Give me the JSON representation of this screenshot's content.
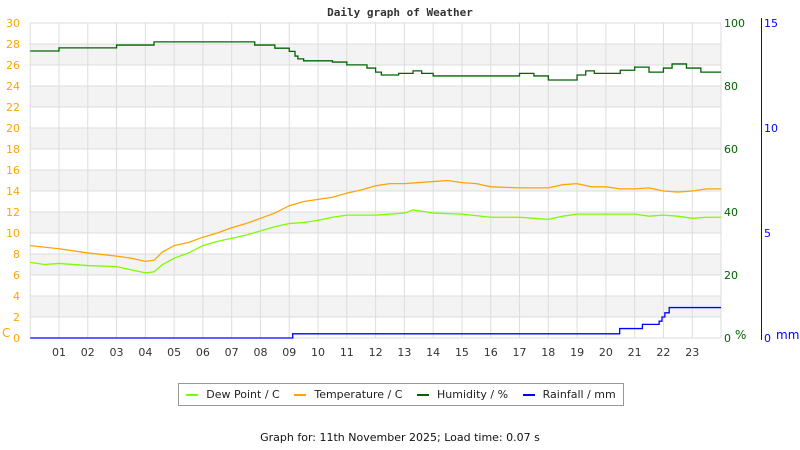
{
  "chart_data": {
    "type": "line",
    "title": "Daily graph of Weather",
    "x_tick_labels": [
      "01",
      "02",
      "03",
      "04",
      "05",
      "06",
      "07",
      "08",
      "09",
      "10",
      "11",
      "12",
      "13",
      "14",
      "15",
      "16",
      "17",
      "18",
      "19",
      "20",
      "21",
      "22",
      "23"
    ],
    "xlim": [
      0,
      24
    ],
    "left_axis": {
      "unit": "C",
      "ylim": [
        0,
        30
      ],
      "ticks": [
        0,
        2,
        4,
        6,
        8,
        10,
        12,
        14,
        16,
        18,
        20,
        22,
        24,
        26,
        28,
        30
      ],
      "color": "#ffa500"
    },
    "right_axis_humidity": {
      "unit": "%",
      "ylim": [
        0,
        100
      ],
      "ticks": [
        0,
        20,
        40,
        60,
        80,
        100
      ],
      "color": "#006400"
    },
    "right_axis_rain": {
      "unit": "mm",
      "ylim": [
        0,
        15
      ],
      "ticks": [
        0,
        5,
        10,
        15
      ],
      "color": "#0000ff"
    },
    "grid": true,
    "legend_placement": "bottom",
    "series": [
      {
        "name": "Dew Point / C",
        "color": "#7cfc00",
        "axis": "left",
        "style": "line",
        "x": [
          0,
          0.5,
          1,
          2,
          3,
          3.5,
          4,
          4.3,
          4.6,
          5,
          5.5,
          6,
          6.5,
          7,
          7.5,
          8,
          8.5,
          9,
          9.5,
          10,
          10.5,
          11,
          12,
          12.5,
          13,
          13.3,
          14,
          15,
          16,
          17,
          17.5,
          18,
          18.5,
          19,
          20,
          21,
          21.5,
          22,
          22.5,
          23,
          23.5,
          24
        ],
        "y": [
          7.2,
          7.0,
          7.1,
          6.9,
          6.8,
          6.5,
          6.2,
          6.3,
          7.0,
          7.6,
          8.1,
          8.8,
          9.2,
          9.5,
          9.8,
          10.2,
          10.6,
          10.9,
          11.0,
          11.2,
          11.5,
          11.7,
          11.7,
          11.8,
          11.9,
          12.2,
          11.9,
          11.8,
          11.5,
          11.5,
          11.4,
          11.3,
          11.6,
          11.8,
          11.8,
          11.8,
          11.6,
          11.7,
          11.6,
          11.4,
          11.5,
          11.5
        ]
      },
      {
        "name": "Temperature / C",
        "color": "#ffa500",
        "axis": "left",
        "style": "line",
        "x": [
          0,
          1,
          2,
          3,
          3.5,
          4,
          4.3,
          4.6,
          5,
          5.5,
          6,
          6.5,
          7,
          7.5,
          8,
          8.5,
          9,
          9.5,
          10,
          10.5,
          11,
          11.5,
          12,
          12.5,
          13,
          14,
          14.5,
          15,
          15.5,
          16,
          17,
          18,
          18.5,
          19,
          19.5,
          20,
          20.5,
          21,
          21.5,
          22,
          22.5,
          23,
          23.5,
          24
        ],
        "y": [
          8.8,
          8.5,
          8.1,
          7.8,
          7.6,
          7.3,
          7.4,
          8.2,
          8.8,
          9.1,
          9.6,
          10.0,
          10.5,
          10.9,
          11.4,
          11.9,
          12.6,
          13.0,
          13.2,
          13.4,
          13.8,
          14.1,
          14.5,
          14.7,
          14.7,
          14.9,
          15.0,
          14.8,
          14.7,
          14.4,
          14.3,
          14.3,
          14.6,
          14.7,
          14.4,
          14.4,
          14.2,
          14.2,
          14.3,
          14.0,
          13.9,
          14.0,
          14.2,
          14.2
        ]
      },
      {
        "name": "Humidity / %",
        "color": "#006400",
        "axis": "right_humidity",
        "style": "step",
        "x": [
          0,
          1,
          3,
          4.3,
          7.8,
          8.5,
          9,
          9.2,
          9.3,
          9.5,
          10.5,
          11,
          11.7,
          12,
          12.2,
          12.8,
          13.3,
          13.6,
          14,
          17,
          17.5,
          18,
          19,
          19.3,
          19.6,
          20.5,
          21,
          21.5,
          22,
          22.3,
          22.8,
          23.3,
          24
        ],
        "y": [
          91.1,
          92.1,
          93.0,
          94.0,
          93.0,
          92.0,
          91.0,
          89.5,
          88.6,
          88.0,
          87.6,
          86.7,
          85.7,
          84.4,
          83.5,
          84.0,
          84.8,
          84.0,
          83.2,
          84.0,
          83.2,
          81.9,
          83.5,
          84.8,
          84.0,
          85.0,
          86.0,
          84.4,
          85.7,
          87.0,
          85.7,
          84.4,
          84.4
        ]
      },
      {
        "name": "Rainfall / mm",
        "color": "#0000ff",
        "axis": "right_rain",
        "style": "step",
        "x": [
          0,
          9.12,
          20.48,
          21.27,
          21.85,
          21.95,
          22.05,
          22.2,
          24
        ],
        "y": [
          0,
          0.2,
          0.45,
          0.65,
          0.8,
          1.0,
          1.2,
          1.45,
          1.45
        ]
      }
    ]
  },
  "footer": "Graph for: 11th November 2025; Load time: 0.07 s"
}
